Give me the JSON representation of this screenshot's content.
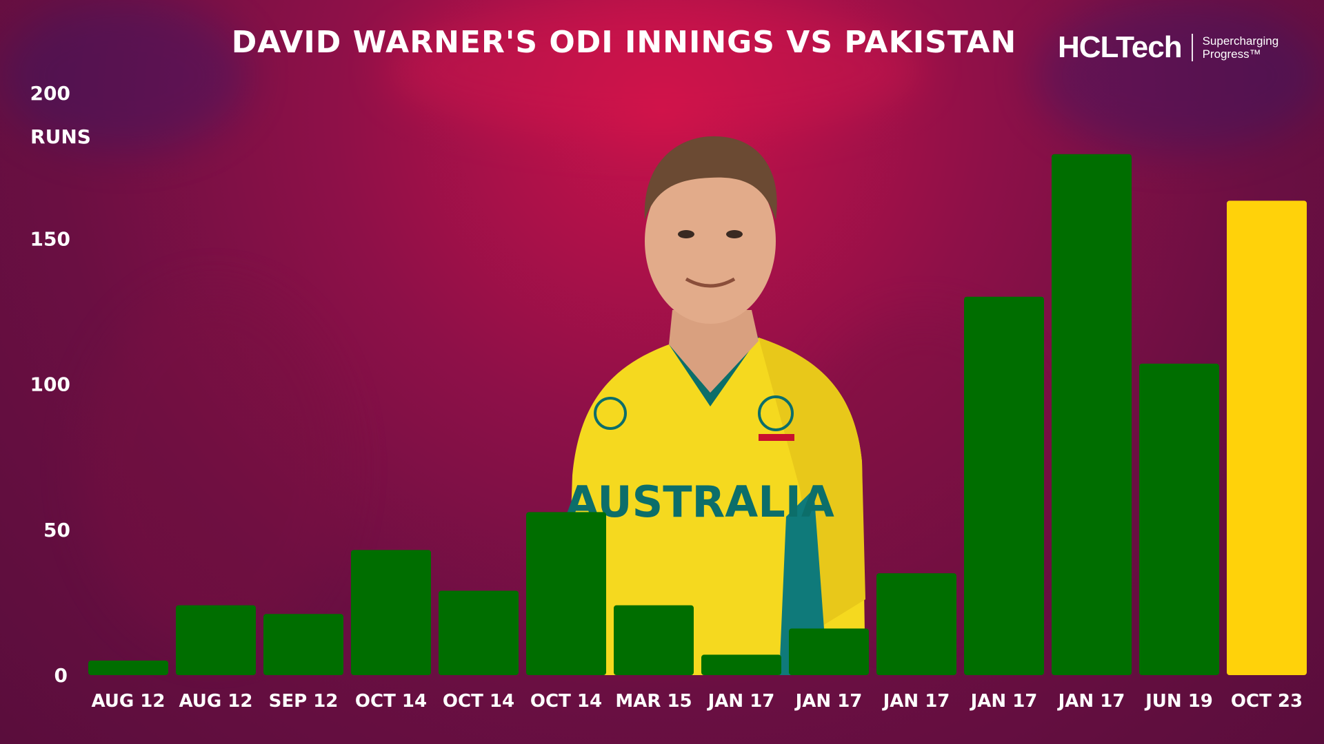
{
  "header": {
    "title": "DAVID WARNER'S ODI INNINGS VS PAKISTAN"
  },
  "brand": {
    "name": "HCLTech",
    "tagline": "Supercharging Progress™"
  },
  "photo": {
    "icon": "player-portrait",
    "jersey_text": "AUSTRALIA"
  },
  "colors": {
    "bar_default": "#006e00",
    "bar_highlight": "#ffd20a",
    "text": "#ffffff"
  },
  "chart_data": {
    "type": "bar",
    "ylabel": "RUNS",
    "ylim": [
      0,
      200
    ],
    "yticks": [
      0,
      50,
      100,
      150,
      200
    ],
    "grid": false,
    "categories": [
      "AUG 12",
      "AUG 12",
      "SEP 12",
      "OCT 14",
      "OCT 14",
      "OCT 14",
      "MAR 15",
      "JAN 17",
      "JAN 17",
      "JAN 17",
      "JAN 17",
      "JAN 17",
      "JUN 19",
      "OCT 23"
    ],
    "values": [
      5,
      24,
      21,
      43,
      29,
      56,
      24,
      7,
      16,
      35,
      130,
      179,
      107,
      163
    ],
    "highlight_index": 13
  }
}
